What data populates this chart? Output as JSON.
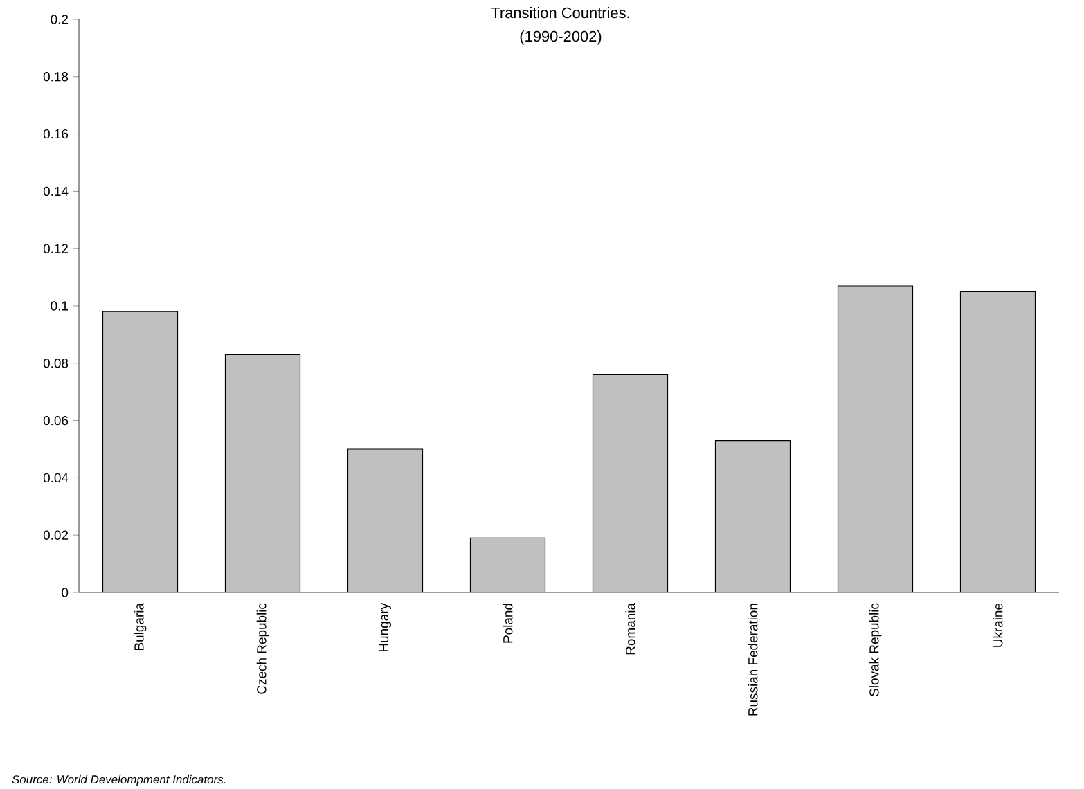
{
  "chart_data": {
    "type": "bar",
    "title": "Transition Countries.",
    "subtitle": "(1990-2002)",
    "categories": [
      "Bulgaria",
      "Czech Republic",
      "Hungary",
      "Poland",
      "Romania",
      "Russian Federation",
      "Slovak Republic",
      "Ukraine"
    ],
    "values": [
      0.098,
      0.083,
      0.05,
      0.019,
      0.076,
      0.053,
      0.107,
      0.105
    ],
    "color": "#c0c0c0",
    "ylim": [
      0,
      0.2
    ],
    "yticks": [
      0,
      0.02,
      0.04,
      0.06,
      0.08,
      0.1,
      0.12,
      0.14,
      0.16,
      0.18,
      0.2
    ],
    "annotations": [
      "Source: World Develompment Indicators."
    ]
  }
}
